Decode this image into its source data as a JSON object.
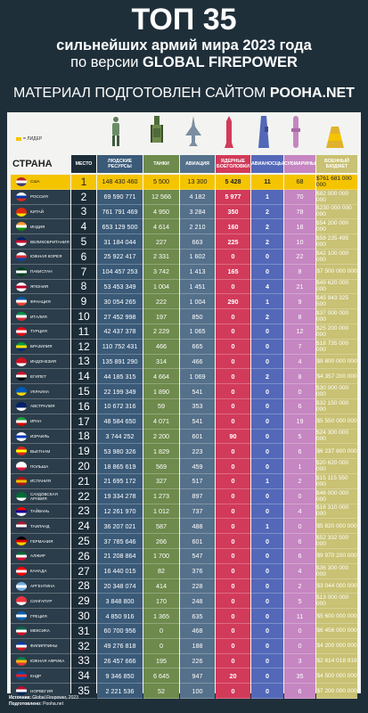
{
  "header": {
    "title": "ТОП 35",
    "line2": "сильнейших армий мира 2023 года",
    "line3_prefix": "по версии ",
    "line3_bold": "GLOBAL FIREPOWER",
    "line4_prefix": "МАТЕРИАЛ ПОДГОТОВЛЕН САЙТОМ ",
    "line4_bold": "POOHA.NET"
  },
  "legend": "= ЛИДЕР",
  "columns": {
    "country": "СТРАНА",
    "rank": "МЕСТО",
    "manpower": "ЛЮДСКИЕ РЕСУРСЫ",
    "tanks": "ТАНКИ",
    "aviation": "АВИАЦИЯ",
    "nuclear": "ЯДЕРНЫЕ БОЕГОЛОВКИ",
    "carriers": "АВИАНОСЦЫ",
    "submarines": "СУБМАРИНЫ",
    "budget": "ВОЕННЫЙ БЮДЖЕТ"
  },
  "icons": [
    "soldier-icon",
    "tank-icon",
    "jet-icon",
    "missile-icon",
    "carrier-icon",
    "submarine-icon",
    "gold-icon"
  ],
  "rows": [
    {
      "country": "США",
      "rank": "1",
      "manpower": "148 430 460",
      "tanks": "5 500",
      "aviation": "13 300",
      "nuclear": "5 428",
      "carriers": "11",
      "subs": "68",
      "budget": "$761 681 000 000",
      "flag": [
        "#b22234",
        "#ffffff",
        "#3c3b6e"
      ],
      "top": true
    },
    {
      "country": "РОССИЯ",
      "rank": "2",
      "manpower": "69 590 771",
      "tanks": "12 566",
      "aviation": "4 182",
      "nuclear": "5 977",
      "carriers": "1",
      "subs": "70",
      "budget": "$82 000 000 000",
      "flag": [
        "#ffffff",
        "#0039a6",
        "#d52b1e"
      ]
    },
    {
      "country": "КИТАЙ",
      "rank": "3",
      "manpower": "761 791 469",
      "tanks": "4 950",
      "aviation": "3 284",
      "nuclear": "350",
      "carriers": "2",
      "subs": "78",
      "budget": "$230 000 000 000",
      "flag": [
        "#de2910",
        "#de2910",
        "#ffde00"
      ]
    },
    {
      "country": "ИНДИЯ",
      "rank": "4",
      "manpower": "653 129 500",
      "tanks": "4 614",
      "aviation": "2 210",
      "nuclear": "160",
      "carriers": "2",
      "subs": "18",
      "budget": "$54 200 000 000",
      "flag": [
        "#ff9933",
        "#ffffff",
        "#138808"
      ]
    },
    {
      "country": "ВЕЛИКОБРИТАНИЯ",
      "rank": "5",
      "manpower": "31 184 044",
      "tanks": "227",
      "aviation": "663",
      "nuclear": "225",
      "carriers": "2",
      "subs": "10",
      "budget": "$58 235 495 000",
      "flag": [
        "#012169",
        "#c8102e",
        "#ffffff"
      ]
    },
    {
      "country": "ЮЖНАЯ КОРЕЯ",
      "rank": "6",
      "manpower": "25 922 417",
      "tanks": "2 331",
      "aviation": "1 602",
      "nuclear": "0",
      "carriers": "0",
      "subs": "22",
      "budget": "$42 100 000 000",
      "flag": [
        "#ffffff",
        "#cd2e3a",
        "#0047a0"
      ]
    },
    {
      "country": "ПАКИСТАН",
      "rank": "7",
      "manpower": "104 457 253",
      "tanks": "3 742",
      "aviation": "1 413",
      "nuclear": "165",
      "carriers": "0",
      "subs": "8",
      "budget": "$7 500 000 000",
      "flag": [
        "#01411c",
        "#ffffff",
        "#01411c"
      ]
    },
    {
      "country": "ЯПОНИЯ",
      "rank": "8",
      "manpower": "53 453 349",
      "tanks": "1 004",
      "aviation": "1 451",
      "nuclear": "0",
      "carriers": "4",
      "subs": "21",
      "budget": "$49 620 000 000",
      "flag": [
        "#ffffff",
        "#bc002d",
        "#ffffff"
      ]
    },
    {
      "country": "ФРАНЦИЯ",
      "rank": "9",
      "manpower": "30 054 265",
      "tanks": "222",
      "aviation": "1 004",
      "nuclear": "290",
      "carriers": "1",
      "subs": "9",
      "budget": "$45 943 325 500",
      "flag": [
        "#0055a4",
        "#ffffff",
        "#ef4135"
      ]
    },
    {
      "country": "ИТАЛИЯ",
      "rank": "10",
      "manpower": "27 452 998",
      "tanks": "197",
      "aviation": "850",
      "nuclear": "0",
      "carriers": "2",
      "subs": "8",
      "budget": "$37 000 000 000",
      "flag": [
        "#009246",
        "#ffffff",
        "#ce2b37"
      ]
    },
    {
      "country": "ТУРЦИЯ",
      "rank": "11",
      "manpower": "42 437 378",
      "tanks": "2 229",
      "aviation": "1 065",
      "nuclear": "0",
      "carriers": "0",
      "subs": "12",
      "budget": "$25 200 000 000",
      "flag": [
        "#e30a17",
        "#ffffff",
        "#e30a17"
      ]
    },
    {
      "country": "БРАЗИЛИЯ",
      "rank": "12",
      "manpower": "110 752 431",
      "tanks": "466",
      "aviation": "665",
      "nuclear": "0",
      "carriers": "0",
      "subs": "7",
      "budget": "$18 735 000 000",
      "flag": [
        "#009c3b",
        "#ffdf00",
        "#002776"
      ]
    },
    {
      "country": "ИНДОНЕЗИЯ",
      "rank": "13",
      "manpower": "135 891 290",
      "tanks": "314",
      "aviation": "466",
      "nuclear": "0",
      "carriers": "0",
      "subs": "4",
      "budget": "$8 800 000 000",
      "flag": [
        "#ce1126",
        "#ce1126",
        "#ffffff"
      ]
    },
    {
      "country": "ЕГИПЕТ",
      "rank": "14",
      "manpower": "44 185 315",
      "tanks": "4 664",
      "aviation": "1 069",
      "nuclear": "0",
      "carriers": "2",
      "subs": "8",
      "budget": "$4 357 200 000",
      "flag": [
        "#ce1126",
        "#ffffff",
        "#000000"
      ]
    },
    {
      "country": "УКРАИНА",
      "rank": "15",
      "manpower": "22 199 349",
      "tanks": "1 890",
      "aviation": "541",
      "nuclear": "0",
      "carriers": "0",
      "subs": "0",
      "budget": "$30 000 000 000",
      "flag": [
        "#0057b7",
        "#0057b7",
        "#ffd700"
      ]
    },
    {
      "country": "АВСТРАЛИЯ",
      "rank": "16",
      "manpower": "10 672 316",
      "tanks": "59",
      "aviation": "353",
      "nuclear": "0",
      "carriers": "0",
      "subs": "6",
      "budget": "$32 150 000 000",
      "flag": [
        "#012169",
        "#012169",
        "#ffffff"
      ]
    },
    {
      "country": "ИРАН",
      "rank": "17",
      "manpower": "48 584 650",
      "tanks": "4 071",
      "aviation": "541",
      "nuclear": "0",
      "carriers": "0",
      "subs": "19",
      "budget": "$5 550 000 000",
      "flag": [
        "#239f40",
        "#ffffff",
        "#da0000"
      ]
    },
    {
      "country": "ИЗРАИЛЬ",
      "rank": "18",
      "manpower": "3 744 252",
      "tanks": "2 200",
      "aviation": "601",
      "nuclear": "90",
      "carriers": "0",
      "subs": "5",
      "budget": "$24 300 000 000",
      "flag": [
        "#ffffff",
        "#0038b8",
        "#ffffff"
      ]
    },
    {
      "country": "ВЬЕТНАМ",
      "rank": "19",
      "manpower": "53 980 326",
      "tanks": "1 829",
      "aviation": "223",
      "nuclear": "0",
      "carriers": "0",
      "subs": "6",
      "budget": "$6 237 600 000",
      "flag": [
        "#da251d",
        "#ffff00",
        "#da251d"
      ]
    },
    {
      "country": "ПОЛЬША",
      "rank": "20",
      "manpower": "18 865 619",
      "tanks": "569",
      "aviation": "459",
      "nuclear": "0",
      "carriers": "0",
      "subs": "1",
      "budget": "$20 620 000 000",
      "flag": [
        "#ffffff",
        "#ffffff",
        "#dc143c"
      ]
    },
    {
      "country": "ИСПАНИЯ",
      "rank": "21",
      "manpower": "21 695 172",
      "tanks": "327",
      "aviation": "517",
      "nuclear": "0",
      "carriers": "1",
      "subs": "2",
      "budget": "$15 115 550 000",
      "flag": [
        "#aa151b",
        "#f1bf00",
        "#aa151b"
      ]
    },
    {
      "country": "САУДОВСКАЯ АРАВИЯ",
      "rank": "22",
      "manpower": "19 334 278",
      "tanks": "1 273",
      "aviation": "897",
      "nuclear": "0",
      "carriers": "0",
      "subs": "0",
      "budget": "$46 000 000 000",
      "flag": [
        "#006c35",
        "#006c35",
        "#ffffff"
      ]
    },
    {
      "country": "ТАЙВАНЬ",
      "rank": "23",
      "manpower": "12 261 970",
      "tanks": "1 012",
      "aviation": "737",
      "nuclear": "0",
      "carriers": "0",
      "subs": "4",
      "budget": "$16 310 000 000",
      "flag": [
        "#fe0000",
        "#000095",
        "#ffffff"
      ]
    },
    {
      "country": "ТАИЛАНД",
      "rank": "24",
      "manpower": "36 207 021",
      "tanks": "587",
      "aviation": "488",
      "nuclear": "0",
      "carriers": "1",
      "subs": "0",
      "budget": "$5 820 000 000",
      "flag": [
        "#a51931",
        "#ffffff",
        "#2d2a4a"
      ]
    },
    {
      "country": "ГЕРМАНИЯ",
      "rank": "25",
      "manpower": "37 785 646",
      "tanks": "266",
      "aviation": "601",
      "nuclear": "0",
      "carriers": "0",
      "subs": "6",
      "budget": "$52 332 500 000",
      "flag": [
        "#000000",
        "#dd0000",
        "#ffce00"
      ]
    },
    {
      "country": "АЛЖИР",
      "rank": "26",
      "manpower": "21 208 864",
      "tanks": "1 700",
      "aviation": "547",
      "nuclear": "0",
      "carriers": "0",
      "subs": "6",
      "budget": "$9 970 200 000",
      "flag": [
        "#006633",
        "#ffffff",
        "#d21034"
      ]
    },
    {
      "country": "КАНАДА",
      "rank": "27",
      "manpower": "16 440 015",
      "tanks": "82",
      "aviation": "376",
      "nuclear": "0",
      "carriers": "0",
      "subs": "4",
      "budget": "$36 300 000 000",
      "flag": [
        "#ff0000",
        "#ffffff",
        "#ff0000"
      ]
    },
    {
      "country": "АРГЕНТИНА",
      "rank": "28",
      "manpower": "20 348 074",
      "tanks": "414",
      "aviation": "228",
      "nuclear": "0",
      "carriers": "0",
      "subs": "2",
      "budget": "$3 044 000 000",
      "flag": [
        "#74acdf",
        "#ffffff",
        "#74acdf"
      ]
    },
    {
      "country": "СИНГАПУР",
      "rank": "29",
      "manpower": "3 848 800",
      "tanks": "170",
      "aviation": "248",
      "nuclear": "0",
      "carriers": "0",
      "subs": "5",
      "budget": "$13 000 000 000",
      "flag": [
        "#ef3340",
        "#ef3340",
        "#ffffff"
      ]
    },
    {
      "country": "ГРЕЦИЯ",
      "rank": "30",
      "manpower": "4 850 916",
      "tanks": "1 365",
      "aviation": "635",
      "nuclear": "0",
      "carriers": "0",
      "subs": "11",
      "budget": "$5 600 000 000",
      "flag": [
        "#0d5eaf",
        "#ffffff",
        "#0d5eaf"
      ]
    },
    {
      "country": "МЕКСИКА",
      "rank": "31",
      "manpower": "60 700 956",
      "tanks": "0",
      "aviation": "468",
      "nuclear": "0",
      "carriers": "0",
      "subs": "0",
      "budget": "$6 456 000 000",
      "flag": [
        "#006847",
        "#ffffff",
        "#ce1126"
      ]
    },
    {
      "country": "ФИЛИППИНЫ",
      "rank": "32",
      "manpower": "49 276 818",
      "tanks": "0",
      "aviation": "188",
      "nuclear": "0",
      "carriers": "0",
      "subs": "0",
      "budget": "$4 200 000 000",
      "flag": [
        "#0038a8",
        "#ffffff",
        "#ce1126"
      ]
    },
    {
      "country": "ЮЖНАЯ АФРИКА",
      "rank": "33",
      "manpower": "26 457 666",
      "tanks": "195",
      "aviation": "226",
      "nuclear": "0",
      "carriers": "0",
      "subs": "3",
      "budget": "$2 814 018 919",
      "flag": [
        "#007a4d",
        "#ffb612",
        "#de3831"
      ]
    },
    {
      "country": "КНДР",
      "rank": "34",
      "manpower": "9 346 850",
      "tanks": "6 645",
      "aviation": "947",
      "nuclear": "20",
      "carriers": "0",
      "subs": "35",
      "budget": "$4 500 000 000",
      "flag": [
        "#024fa2",
        "#ed1c27",
        "#024fa2"
      ]
    },
    {
      "country": "НОРВЕГИЯ",
      "rank": "35",
      "manpower": "2 221 536",
      "tanks": "52",
      "aviation": "100",
      "nuclear": "0",
      "carriers": "0",
      "subs": "6",
      "budget": "$7 200 000 000",
      "flag": [
        "#ba0c2f",
        "#ffffff",
        "#00205b"
      ]
    }
  ],
  "footer": {
    "source_label": "Источник:",
    "source": "Global Firepower, 2023",
    "prepared_label": "Подготовлено:",
    "prepared": "Pooha.net"
  }
}
